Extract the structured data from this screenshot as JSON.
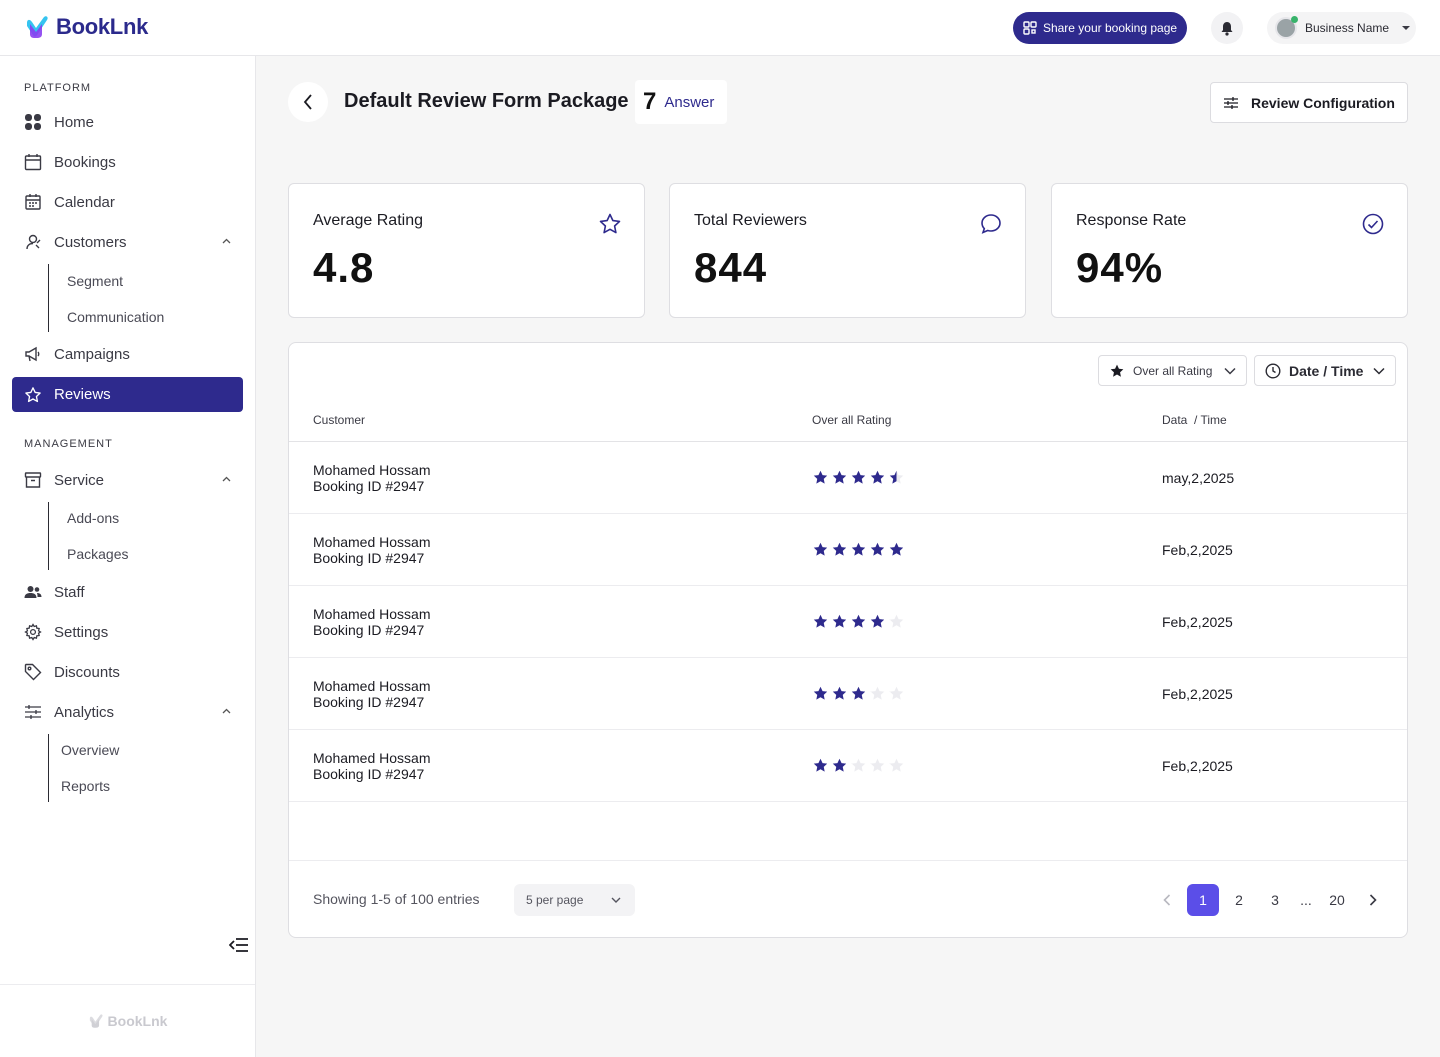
{
  "app": {
    "brand": "BookLnk"
  },
  "topbar": {
    "share_label": "Share your booking page",
    "account_name": "Business Name"
  },
  "sidebar": {
    "platform_label": "PLATFORM",
    "management_label": "MANAGEMENT",
    "items": {
      "home": "Home",
      "bookings": "Bookings",
      "calendar": "Calendar",
      "customers": "Customers",
      "segment": "Segment",
      "communication": "Communication",
      "campaigns": "Campaigns",
      "reviews": "Reviews",
      "service": "Service",
      "addons": "Add-ons",
      "packages": "Packages",
      "staff": "Staff",
      "settings": "Settings",
      "discounts": "Discounts",
      "analytics": "Analytics",
      "overview": "Overview",
      "reports": "Reports"
    },
    "active": "reviews",
    "footer_brand": "BookLnk"
  },
  "header": {
    "title": "Default Review Form Package",
    "answer_count": "7",
    "answer_label": "Answer",
    "config_label": "Review Configuration"
  },
  "stats": [
    {
      "label": "Average Rating",
      "value": "4.8",
      "icon": "star-icon"
    },
    {
      "label": "Total Reviewers",
      "value": "844",
      "icon": "chat-bubble-icon"
    },
    {
      "label": "Response Rate",
      "value": "94%",
      "icon": "check-circle-icon"
    }
  ],
  "filters": {
    "rating_label": "Over all Rating",
    "date_label": "Date / Time"
  },
  "table": {
    "columns": {
      "customer": "Customer",
      "rating": "Over all Rating",
      "date": "Data  / Time"
    },
    "rows": [
      {
        "name": "Mohamed Hossam",
        "booking": "Booking ID #2947",
        "rating": 4.5,
        "date": "may,2,2025"
      },
      {
        "name": "Mohamed Hossam",
        "booking": "Booking ID #2947",
        "rating": 5,
        "date": "Feb,2,2025"
      },
      {
        "name": "Mohamed Hossam",
        "booking": "Booking ID #2947",
        "rating": 4,
        "date": "Feb,2,2025"
      },
      {
        "name": "Mohamed Hossam",
        "booking": "Booking ID #2947",
        "rating": 3,
        "date": "Feb,2,2025"
      },
      {
        "name": "Mohamed Hossam",
        "booking": "Booking ID #2947",
        "rating": 2,
        "date": "Feb,2,2025"
      }
    ]
  },
  "pagination": {
    "showing": "Showing 1-5 of 100 entries",
    "per_page": "5 per page",
    "pages": [
      "1",
      "2",
      "3",
      "...",
      "20"
    ],
    "current": "1"
  },
  "colors": {
    "primary": "#2e2a8d",
    "accent": "#5b4ee8",
    "star_filled": "#2e2a8d",
    "star_empty": "#ececf0"
  }
}
